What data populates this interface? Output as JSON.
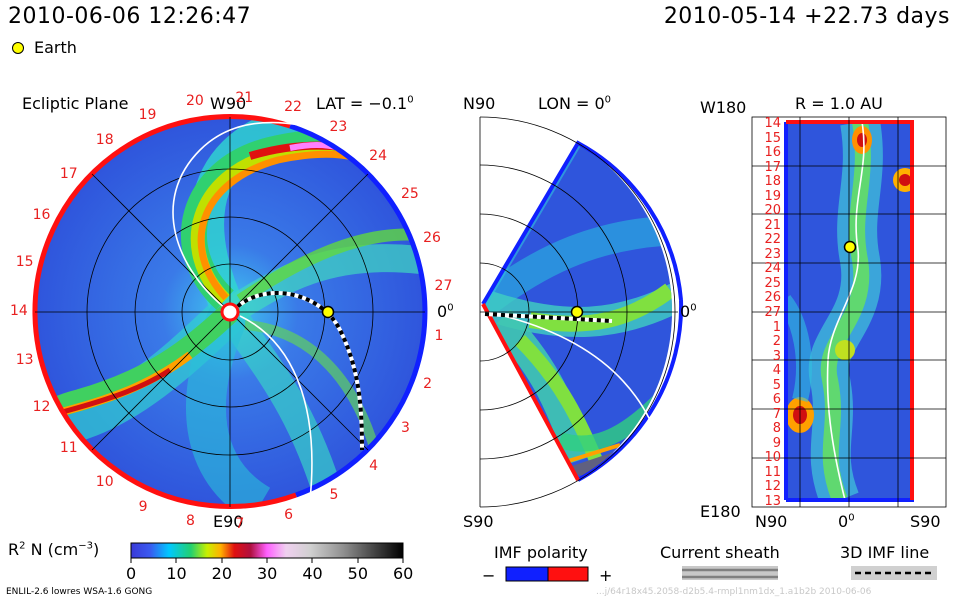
{
  "header": {
    "timestamp": "2010-06-06 12:26:47",
    "reference": "2010-05-14 +22.73 days",
    "earth_label": "Earth"
  },
  "ecliptic": {
    "title": "Ecliptic Plane",
    "lat_label": "LAT = −0.1",
    "lat_deg": "0",
    "top_label": "W90",
    "bottom_label": "E90",
    "right_label": "0",
    "right_deg": "0",
    "rotation_labels": [
      "14",
      "15",
      "16",
      "17",
      "18",
      "19",
      "20",
      "21",
      "22",
      "23",
      "24",
      "25",
      "26",
      "27",
      "1",
      "2",
      "3",
      "4",
      "5",
      "6",
      "7",
      "8",
      "9",
      "10",
      "11",
      "12",
      "13"
    ]
  },
  "meridional": {
    "top_label": "N90",
    "lon_label": "LON = 0",
    "lon_deg": "0",
    "bottom_label": "S90",
    "right_label": "0",
    "right_deg": "0"
  },
  "au_panel": {
    "title": "R = 1.0 AU",
    "top_left": "W180",
    "bottom_left": "E180",
    "x_left": "N90",
    "x_mid": "0",
    "x_mid_deg": "0",
    "x_right": "S90",
    "y_labels": [
      "14",
      "15",
      "16",
      "17",
      "18",
      "19",
      "20",
      "21",
      "22",
      "23",
      "24",
      "25",
      "26",
      "27",
      "1",
      "2",
      "3",
      "4",
      "5",
      "6",
      "7",
      "8",
      "9",
      "10",
      "11",
      "12",
      "13"
    ]
  },
  "colorbar": {
    "label_main": "R",
    "label_sup": "2",
    "label_rest": " N (cm",
    "label_exp": "−3",
    "label_close": ")",
    "ticks": [
      "0",
      "10",
      "20",
      "30",
      "40",
      "50",
      "60"
    ]
  },
  "legend": {
    "imf_polarity": "IMF polarity",
    "minus": "−",
    "plus": "+",
    "current_sheath": "Current sheath",
    "imf_line": "3D IMF line"
  },
  "footer": {
    "model": "ENLIL-2.6 lowres WSA-1.6 GONG",
    "watermark": "...j/64r18x45.2058-d2b5.4-rmpl1nm1dx_1.a1b2b    2010-06-06"
  },
  "colors": {
    "blue_polarity": "#1020ff",
    "red_polarity": "#ff1010",
    "background_wind": "#2a4fd8",
    "earth_marker": "#ffff00"
  }
}
